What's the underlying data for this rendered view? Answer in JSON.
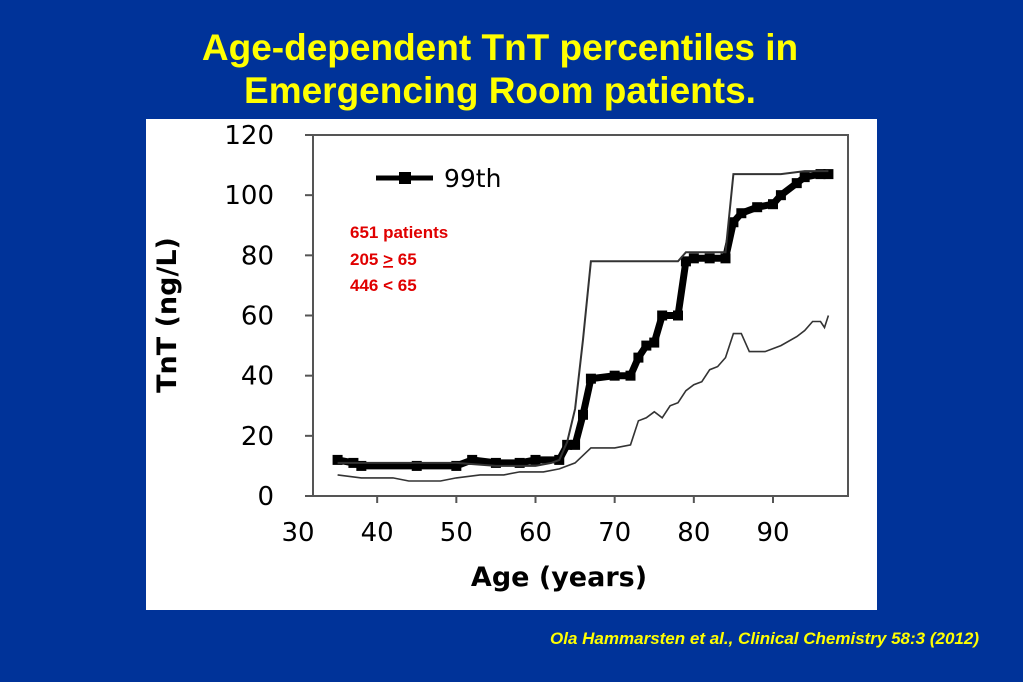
{
  "slide": {
    "title_line1": "Age-dependent TnT percentiles in",
    "title_line2": "Emergencing Room patients.",
    "citation": "Ola Hammarsten et al., Clinical Chemistry 58:3 (2012)"
  },
  "annotation": {
    "line1": "651 patients",
    "line2_prefix": "205 ",
    "line2_symbol": ">",
    "line2_suffix": " 65",
    "line3": "446 < 65"
  },
  "colors": {
    "background": "#003399",
    "title": "#ffff00",
    "annotation": "#e00000",
    "series": "#000000"
  },
  "chart_data": {
    "type": "line",
    "xlabel": "Age (years)",
    "ylabel": "TnT (ng/L)",
    "xlim": [
      30,
      98
    ],
    "ylim": [
      0,
      120
    ],
    "xticks": [
      30,
      40,
      50,
      60,
      70,
      80,
      90
    ],
    "yticks": [
      0,
      20,
      40,
      60,
      80,
      100,
      120
    ],
    "grid": false,
    "legend": {
      "position": "top-center",
      "entries": [
        "99th"
      ]
    },
    "series": [
      {
        "name": "99th",
        "style": "thick-square",
        "points": [
          [
            35,
            12
          ],
          [
            37,
            11
          ],
          [
            38,
            10
          ],
          [
            45,
            10
          ],
          [
            50,
            10
          ],
          [
            52,
            12
          ],
          [
            55,
            11
          ],
          [
            58,
            11
          ],
          [
            60,
            12
          ],
          [
            63,
            12
          ],
          [
            64,
            17
          ],
          [
            65,
            17
          ],
          [
            66,
            27
          ],
          [
            67,
            39
          ],
          [
            70,
            40
          ],
          [
            72,
            40
          ],
          [
            73,
            46
          ],
          [
            74,
            50
          ],
          [
            75,
            51
          ],
          [
            76,
            60
          ],
          [
            78,
            60
          ],
          [
            79,
            78
          ],
          [
            80,
            79
          ],
          [
            82,
            79
          ],
          [
            84,
            79
          ],
          [
            85,
            91
          ],
          [
            86,
            94
          ],
          [
            88,
            96
          ],
          [
            90,
            97
          ],
          [
            91,
            100
          ],
          [
            93,
            104
          ],
          [
            94,
            106
          ],
          [
            96,
            107
          ],
          [
            97,
            107
          ]
        ]
      },
      {
        "style": "thin-upper",
        "points": [
          [
            35,
            11
          ],
          [
            40,
            11
          ],
          [
            45,
            11
          ],
          [
            50,
            11
          ],
          [
            55,
            10
          ],
          [
            60,
            10
          ],
          [
            62,
            11
          ],
          [
            63,
            12
          ],
          [
            64,
            18
          ],
          [
            65,
            29
          ],
          [
            66,
            52
          ],
          [
            67,
            78
          ],
          [
            70,
            78
          ],
          [
            75,
            78
          ],
          [
            78,
            78
          ],
          [
            79,
            81
          ],
          [
            84,
            81
          ],
          [
            85,
            107
          ],
          [
            88,
            107
          ],
          [
            91,
            107
          ],
          [
            94,
            108
          ],
          [
            97,
            108
          ]
        ]
      },
      {
        "style": "thin-lower",
        "points": [
          [
            35,
            7
          ],
          [
            38,
            6
          ],
          [
            42,
            6
          ],
          [
            44,
            5
          ],
          [
            48,
            5
          ],
          [
            50,
            6
          ],
          [
            53,
            7
          ],
          [
            56,
            7
          ],
          [
            58,
            8
          ],
          [
            61,
            8
          ],
          [
            63,
            9
          ],
          [
            65,
            11
          ],
          [
            67,
            16
          ],
          [
            70,
            16
          ],
          [
            72,
            17
          ],
          [
            73,
            25
          ],
          [
            74,
            26
          ],
          [
            75,
            28
          ],
          [
            76,
            26
          ],
          [
            77,
            30
          ],
          [
            78,
            31
          ],
          [
            79,
            35
          ],
          [
            80,
            37
          ],
          [
            81,
            38
          ],
          [
            82,
            42
          ],
          [
            83,
            43
          ],
          [
            84,
            46
          ],
          [
            85,
            54
          ],
          [
            86,
            54
          ],
          [
            87,
            48
          ],
          [
            89,
            48
          ],
          [
            91,
            50
          ],
          [
            93,
            53
          ],
          [
            94,
            55
          ],
          [
            95,
            58
          ],
          [
            96,
            58
          ],
          [
            96.5,
            56
          ],
          [
            97,
            60
          ]
        ]
      }
    ]
  }
}
